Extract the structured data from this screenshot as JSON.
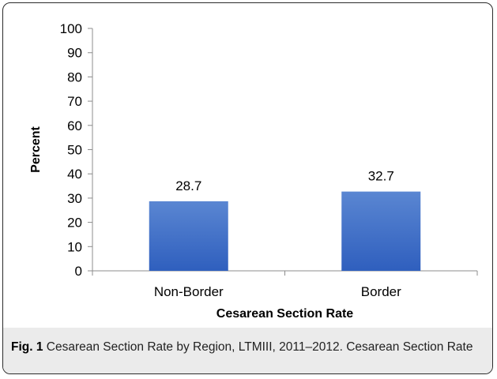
{
  "chart_data": {
    "type": "bar",
    "categories": [
      "Non-Border",
      "Border"
    ],
    "values": [
      28.7,
      32.7
    ],
    "data_labels": [
      "28.7",
      "32.7"
    ],
    "xlabel": "Cesarean Section Rate",
    "ylabel": "Percent",
    "ylim": [
      0,
      100
    ],
    "yticks": [
      0,
      10,
      20,
      30,
      40,
      50,
      60,
      70,
      80,
      90,
      100
    ],
    "ytick_labels": [
      "0",
      "10",
      "20",
      "30",
      "40",
      "50",
      "60",
      "70",
      "80",
      "90",
      "100"
    ],
    "grid": false,
    "legend": "none",
    "bar_color_top": "#5a86d2",
    "bar_color_bottom": "#2f5fbe"
  },
  "caption": {
    "label": "Fig. 1",
    "text": "Cesarean Section Rate by Region, LTMIII, 2011–2012. Cesarean Section Rate"
  }
}
